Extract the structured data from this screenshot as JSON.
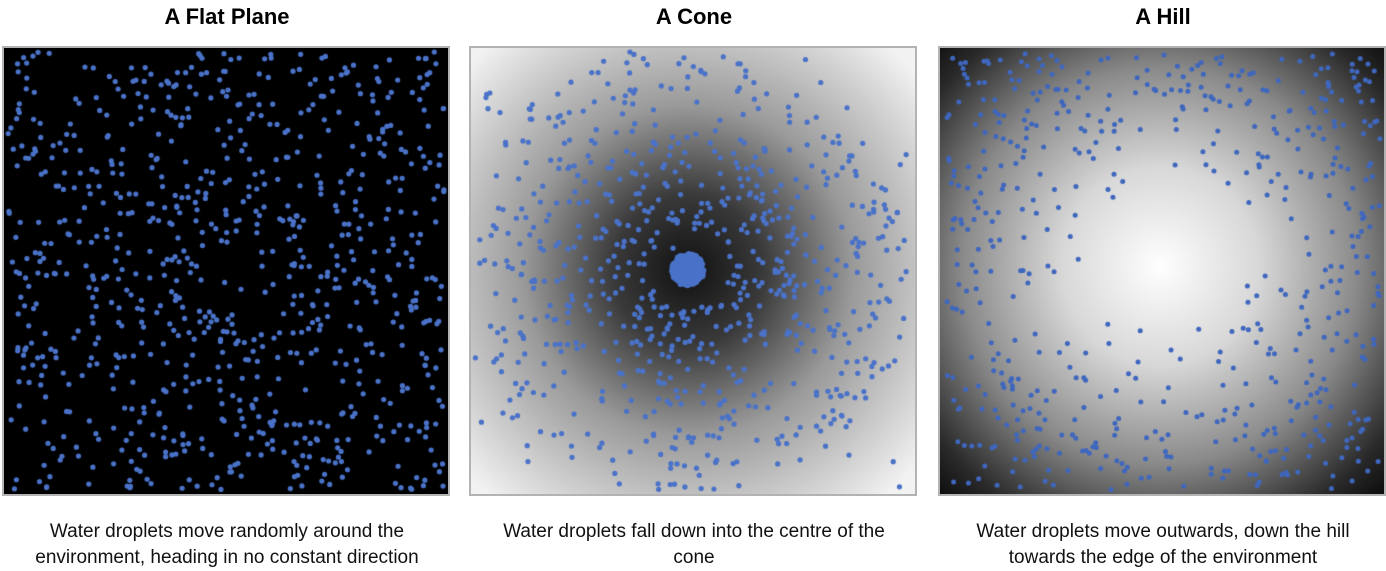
{
  "panels": [
    {
      "title": "A Flat Plane",
      "caption_lines": [
        "Water droplets move randomly around the",
        "environment, heading in no constant direction"
      ],
      "surface": "flat",
      "background": "#000000",
      "droplet_color": "#4a72c8",
      "droplet_distribution": "uniform random"
    },
    {
      "title": "A Cone",
      "caption_lines": [
        "Water droplets fall down into the centre of the",
        "cone"
      ],
      "surface": "cone",
      "gradient_center": "#111111",
      "gradient_edge": "#f2f2f2",
      "droplet_color": "#4a72c8",
      "droplet_distribution": "clustered at centre, ring pattern"
    },
    {
      "title": "A Hill",
      "caption_lines": [
        "Water droplets move outwards, down the hill",
        "towards the edge of the environment"
      ],
      "surface": "hill",
      "gradient_center": "#ffffff",
      "gradient_edge": "#050505",
      "droplet_color": "#3f67be",
      "droplet_distribution": "spread towards edges"
    }
  ]
}
